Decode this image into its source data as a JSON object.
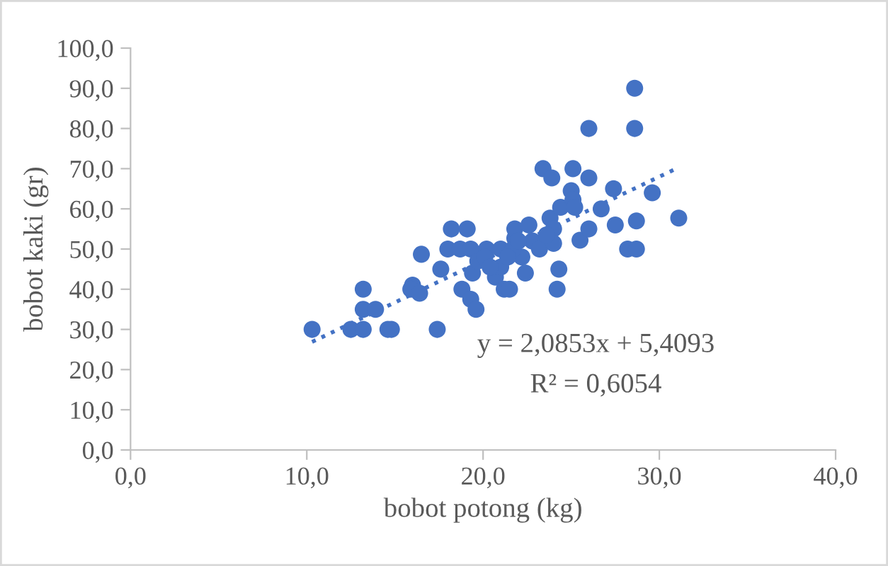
{
  "chart_data": {
    "type": "scatter",
    "xlabel": "bobot potong (kg)",
    "ylabel": "bobot kaki (gr)",
    "xlim": [
      0,
      40
    ],
    "ylim": [
      0,
      100
    ],
    "xticks": [
      {
        "value": 0,
        "label": "0,0"
      },
      {
        "value": 10,
        "label": "10,0"
      },
      {
        "value": 20,
        "label": "20,0"
      },
      {
        "value": 30,
        "label": "30,0"
      },
      {
        "value": 40,
        "label": "40,0"
      }
    ],
    "yticks": [
      {
        "value": 0,
        "label": "0,0"
      },
      {
        "value": 10,
        "label": "10,0"
      },
      {
        "value": 20,
        "label": "20,0"
      },
      {
        "value": 30,
        "label": "30,0"
      },
      {
        "value": 40,
        "label": "40,0"
      },
      {
        "value": 50,
        "label": "50,0"
      },
      {
        "value": 60,
        "label": "60,0"
      },
      {
        "value": 70,
        "label": "70,0"
      },
      {
        "value": 80,
        "label": "80,0"
      },
      {
        "value": 90,
        "label": "90,0"
      },
      {
        "value": 100,
        "label": "100,0"
      }
    ],
    "grid": false,
    "legend": false,
    "marker": "circle",
    "series": [
      {
        "color": "#4472c4",
        "x": [
          10.3,
          12.5,
          13.2,
          13.2,
          13.2,
          13.9,
          14.6,
          14.8,
          16.0,
          15.9,
          16.4,
          16.5,
          17.4,
          17.6,
          18.0,
          18.2,
          19.1,
          18.7,
          18.8,
          19.3,
          19.6,
          19.3,
          19.4,
          19.7,
          20.2,
          20.1,
          20.7,
          21.0,
          21.0,
          21.2,
          21.5,
          21.8,
          21.8,
          22.2,
          22.4,
          22.6,
          22.8,
          23.2,
          23.4,
          23.9,
          23.8,
          24.0,
          24.0,
          24.2,
          24.3,
          24.4,
          25.1,
          25.0,
          25.1,
          25.2,
          25.5,
          26.0,
          26.0,
          26.0,
          26.7,
          27.4,
          27.5,
          28.2,
          28.7,
          28.6,
          28.6,
          28.7,
          29.6,
          31.1,
          21.7,
          23.6,
          22.0,
          21.4,
          20.4
        ],
        "values": [
          30,
          30,
          30,
          40,
          35,
          35,
          30,
          30,
          41,
          40,
          39,
          48.7,
          30,
          45,
          50,
          55,
          55,
          50,
          40,
          37.5,
          35,
          50,
          44,
          47,
          50,
          48,
          43,
          45.5,
          50,
          40,
          40,
          52.7,
          55,
          48,
          44,
          56,
          52,
          50,
          70,
          67.7,
          57.7,
          55,
          51.4,
          40,
          45,
          60.4,
          70,
          64.5,
          62.3,
          60.4,
          52.2,
          80,
          67.7,
          55,
          60,
          65,
          56,
          50,
          50,
          80,
          90,
          57,
          64,
          57.7,
          50,
          53.5,
          52,
          48,
          45.5
        ]
      },
      {
        "type": "line",
        "color": "#4472c4",
        "line_style": "dotted",
        "marker": "none",
        "x": [
          10.3,
          31.1
        ],
        "values": [
          26.9,
          70.3
        ]
      }
    ],
    "annotations": [
      "y = 2,0853x + 5,4093",
      "R² = 0,6054"
    ]
  }
}
